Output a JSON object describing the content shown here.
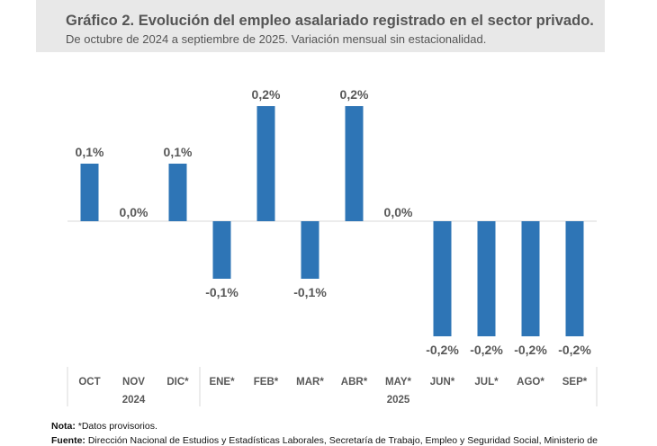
{
  "header": {
    "title": "Gráfico 2. Evolución del empleo asalariado registrado en el sector privado.",
    "subtitle": "De octubre de 2024 a septiembre de 2025. Variación mensual sin estacionalidad."
  },
  "chart_data": {
    "type": "bar",
    "title": "Gráfico 2. Evolución del empleo asalariado registrado en el sector privado.",
    "subtitle": "De octubre de 2024 a septiembre de 2025. Variación mensual sin estacionalidad.",
    "categories": [
      "OCT",
      "NOV",
      "DIC*",
      "ENE*",
      "FEB*",
      "MAR*",
      "ABR*",
      "MAY*",
      "JUN*",
      "JUL*",
      "AGO*",
      "SEP*"
    ],
    "years": [
      {
        "label": "2024",
        "span": 3
      },
      {
        "label": "2025",
        "span": 9
      }
    ],
    "values": [
      0.1,
      0.0,
      0.1,
      -0.1,
      0.2,
      -0.1,
      0.2,
      0.0,
      -0.2,
      -0.2,
      -0.2,
      -0.2
    ],
    "data_labels": [
      "0,1%",
      "0,0%",
      "0,1%",
      "-0,1%",
      "0,2%",
      "-0,1%",
      "0,2%",
      "0,0%",
      "-0,2%",
      "-0,2%",
      "-0,2%",
      "-0,2%"
    ],
    "ylim": [
      -0.2,
      0.2
    ],
    "grid": false,
    "bar_color": "#2e75b6"
  },
  "notes": {
    "nota_label": "Nota:",
    "nota_text": " *Datos provisorios.",
    "fuente_label": "Fuente:",
    "fuente_text": " Dirección Nacional de Estudios y Estadísticas Laborales, Secretaría de Trabajo, Empleo y Seguridad Social, Ministerio de"
  }
}
